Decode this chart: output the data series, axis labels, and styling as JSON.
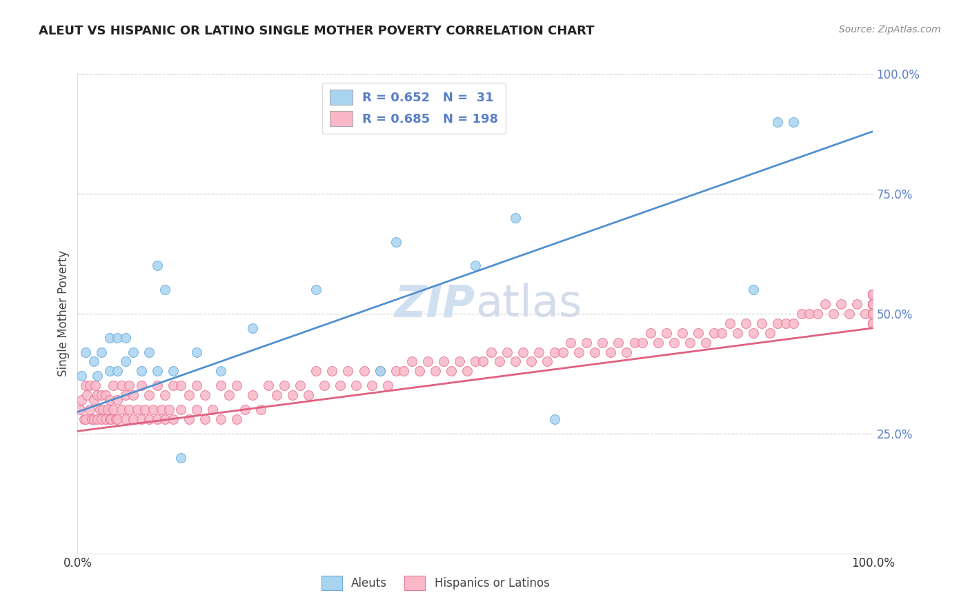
{
  "title": "ALEUT VS HISPANIC OR LATINO SINGLE MOTHER POVERTY CORRELATION CHART",
  "source_text": "Source: ZipAtlas.com",
  "ylabel": "Single Mother Poverty",
  "legend_r1": "R = 0.652",
  "legend_n1": "N =  31",
  "legend_r2": "R = 0.685",
  "legend_n2": "N = 198",
  "color_blue_scatter": "#a8d4f0",
  "color_blue_edge": "#6aaee0",
  "color_pink_scatter": "#f8b8c8",
  "color_pink_edge": "#e87898",
  "color_blue_line": "#5090d0",
  "color_pink_line": "#e06080",
  "color_grid": "#cccccc",
  "color_tick_right": "#5a7fc8",
  "watermark_color": "#d8e8f5",
  "xlim": [
    0.0,
    1.0
  ],
  "ylim": [
    0.0,
    1.0
  ],
  "y_tick_positions": [
    0.25,
    0.5,
    0.75,
    1.0
  ],
  "y_tick_labels": [
    "25.0%",
    "50.0%",
    "75.0%",
    "100.0%"
  ],
  "x_tick_positions": [
    0.0,
    1.0
  ],
  "x_tick_labels": [
    "0.0%",
    "100.0%"
  ],
  "aleut_x": [
    0.005,
    0.01,
    0.02,
    0.025,
    0.03,
    0.04,
    0.04,
    0.05,
    0.05,
    0.06,
    0.06,
    0.07,
    0.08,
    0.09,
    0.1,
    0.1,
    0.11,
    0.12,
    0.13,
    0.15,
    0.18,
    0.22,
    0.3,
    0.38,
    0.4,
    0.5,
    0.55,
    0.6,
    0.85,
    0.88,
    0.9
  ],
  "aleut_y": [
    0.37,
    0.42,
    0.4,
    0.37,
    0.42,
    0.38,
    0.45,
    0.38,
    0.45,
    0.4,
    0.45,
    0.42,
    0.38,
    0.42,
    0.6,
    0.38,
    0.55,
    0.38,
    0.2,
    0.42,
    0.38,
    0.47,
    0.55,
    0.38,
    0.65,
    0.6,
    0.7,
    0.28,
    0.55,
    0.9,
    0.9
  ],
  "hisp_x": [
    0.003,
    0.005,
    0.008,
    0.01,
    0.01,
    0.012,
    0.015,
    0.015,
    0.018,
    0.02,
    0.02,
    0.022,
    0.025,
    0.025,
    0.028,
    0.03,
    0.03,
    0.032,
    0.035,
    0.035,
    0.038,
    0.04,
    0.04,
    0.042,
    0.045,
    0.045,
    0.048,
    0.05,
    0.05,
    0.055,
    0.055,
    0.06,
    0.06,
    0.065,
    0.065,
    0.07,
    0.07,
    0.075,
    0.08,
    0.08,
    0.085,
    0.09,
    0.09,
    0.095,
    0.1,
    0.1,
    0.105,
    0.11,
    0.11,
    0.115,
    0.12,
    0.12,
    0.13,
    0.13,
    0.14,
    0.14,
    0.15,
    0.15,
    0.16,
    0.16,
    0.17,
    0.18,
    0.18,
    0.19,
    0.2,
    0.2,
    0.21,
    0.22,
    0.23,
    0.24,
    0.25,
    0.26,
    0.27,
    0.28,
    0.29,
    0.3,
    0.31,
    0.32,
    0.33,
    0.34,
    0.35,
    0.36,
    0.37,
    0.38,
    0.39,
    0.4,
    0.41,
    0.42,
    0.43,
    0.44,
    0.45,
    0.46,
    0.47,
    0.48,
    0.49,
    0.5,
    0.51,
    0.52,
    0.53,
    0.54,
    0.55,
    0.56,
    0.57,
    0.58,
    0.59,
    0.6,
    0.61,
    0.62,
    0.63,
    0.64,
    0.65,
    0.66,
    0.67,
    0.68,
    0.69,
    0.7,
    0.71,
    0.72,
    0.73,
    0.74,
    0.75,
    0.76,
    0.77,
    0.78,
    0.79,
    0.8,
    0.81,
    0.82,
    0.83,
    0.84,
    0.85,
    0.86,
    0.87,
    0.88,
    0.89,
    0.9,
    0.91,
    0.92,
    0.93,
    0.94,
    0.95,
    0.96,
    0.97,
    0.98,
    0.99,
    1.0,
    1.0,
    1.0,
    1.0,
    1.0,
    1.0,
    1.0,
    1.0,
    1.0,
    1.0,
    1.0,
    1.0,
    1.0,
    1.0,
    1.0,
    1.0,
    1.0,
    1.0,
    1.0,
    1.0,
    1.0,
    1.0,
    1.0,
    1.0,
    1.0,
    1.0,
    1.0,
    1.0,
    1.0,
    1.0,
    1.0,
    1.0,
    1.0,
    1.0,
    1.0,
    1.0,
    1.0,
    1.0,
    1.0,
    1.0,
    1.0,
    1.0,
    1.0,
    1.0,
    1.0,
    1.0,
    1.0,
    1.0,
    1.0,
    1.0,
    1.0,
    1.0,
    1.0
  ],
  "hisp_y": [
    0.3,
    0.32,
    0.28,
    0.28,
    0.35,
    0.33,
    0.3,
    0.35,
    0.28,
    0.28,
    0.32,
    0.35,
    0.28,
    0.33,
    0.3,
    0.28,
    0.33,
    0.3,
    0.28,
    0.33,
    0.3,
    0.28,
    0.32,
    0.28,
    0.3,
    0.35,
    0.28,
    0.28,
    0.32,
    0.3,
    0.35,
    0.28,
    0.33,
    0.3,
    0.35,
    0.28,
    0.33,
    0.3,
    0.28,
    0.35,
    0.3,
    0.28,
    0.33,
    0.3,
    0.28,
    0.35,
    0.3,
    0.28,
    0.33,
    0.3,
    0.28,
    0.35,
    0.3,
    0.35,
    0.28,
    0.33,
    0.3,
    0.35,
    0.28,
    0.33,
    0.3,
    0.28,
    0.35,
    0.33,
    0.28,
    0.35,
    0.3,
    0.33,
    0.3,
    0.35,
    0.33,
    0.35,
    0.33,
    0.35,
    0.33,
    0.38,
    0.35,
    0.38,
    0.35,
    0.38,
    0.35,
    0.38,
    0.35,
    0.38,
    0.35,
    0.38,
    0.38,
    0.4,
    0.38,
    0.4,
    0.38,
    0.4,
    0.38,
    0.4,
    0.38,
    0.4,
    0.4,
    0.42,
    0.4,
    0.42,
    0.4,
    0.42,
    0.4,
    0.42,
    0.4,
    0.42,
    0.42,
    0.44,
    0.42,
    0.44,
    0.42,
    0.44,
    0.42,
    0.44,
    0.42,
    0.44,
    0.44,
    0.46,
    0.44,
    0.46,
    0.44,
    0.46,
    0.44,
    0.46,
    0.44,
    0.46,
    0.46,
    0.48,
    0.46,
    0.48,
    0.46,
    0.48,
    0.46,
    0.48,
    0.48,
    0.48,
    0.5,
    0.5,
    0.5,
    0.52,
    0.5,
    0.52,
    0.5,
    0.52,
    0.5,
    0.52,
    0.52,
    0.54,
    0.52,
    0.54,
    0.52,
    0.54,
    0.52,
    0.54,
    0.5,
    0.52,
    0.54,
    0.5,
    0.52,
    0.52,
    0.48,
    0.5,
    0.52,
    0.48,
    0.5,
    0.48,
    0.5,
    0.48,
    0.5,
    0.48,
    0.5,
    0.52,
    0.48,
    0.5,
    0.52,
    0.54,
    0.5,
    0.52,
    0.5,
    0.52,
    0.5,
    0.52,
    0.54,
    0.5,
    0.52,
    0.5,
    0.52,
    0.54,
    0.5,
    0.52,
    0.5,
    0.5,
    0.52,
    0.5,
    0.52,
    0.5,
    0.52,
    0.54
  ],
  "blue_line_x0": 0.0,
  "blue_line_y0": 0.295,
  "blue_line_x1": 1.0,
  "blue_line_y1": 0.88,
  "pink_line_x0": 0.0,
  "pink_line_y0": 0.255,
  "pink_line_x1": 1.0,
  "pink_line_y1": 0.47
}
